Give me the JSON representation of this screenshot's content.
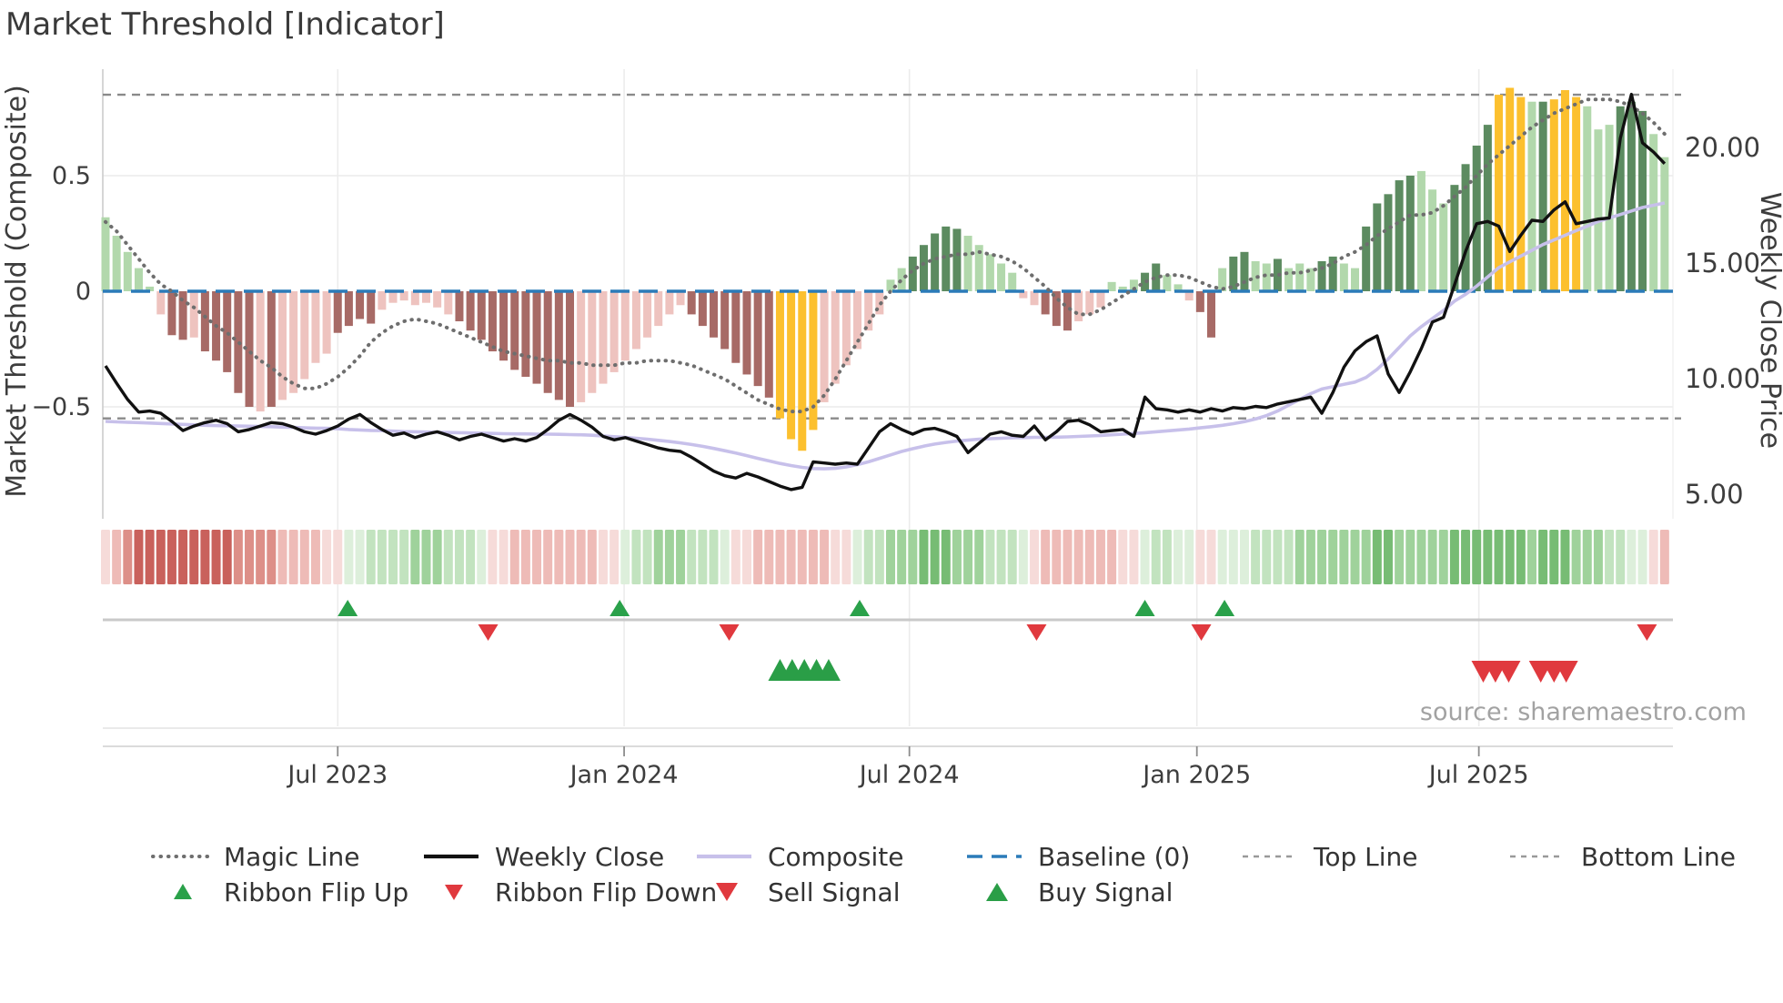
{
  "title": "Market Threshold [Indicator]",
  "source_note": "source: sharemaestro.com",
  "axes": {
    "left_label": "Market Threshold (Composite)",
    "right_label": "Weekly Close Price",
    "left_ticks": [
      {
        "value": 0.5,
        "label": "0.5"
      },
      {
        "value": 0,
        "label": "0"
      },
      {
        "value": -0.5,
        "label": "−0.5"
      }
    ],
    "right_ticks": [
      {
        "value": 20,
        "label": "20.00"
      },
      {
        "value": 15,
        "label": "15.00"
      },
      {
        "value": 10,
        "label": "10.00"
      },
      {
        "value": 5,
        "label": "5.00"
      }
    ],
    "x_ticks": [
      {
        "week": 21.0,
        "label": "Jul 2023"
      },
      {
        "week": 46.9,
        "label": "Jan 2024"
      },
      {
        "week": 72.7,
        "label": "Jul 2024"
      },
      {
        "week": 98.7,
        "label": "Jan 2025"
      },
      {
        "week": 124.2,
        "label": "Jul 2025"
      }
    ]
  },
  "colors": {
    "bar_dark_green": "#5c8b60",
    "bar_light_green": "#b2d8ac",
    "bar_dark_red": "#a76a66",
    "bar_light_pink": "#eec3bf",
    "bar_yellow": "#fcc02e",
    "weekly_close": "#111111",
    "composite_line": "#c7c0ea",
    "magic_line": "#6e6e6e",
    "baseline": "#2b7bb9",
    "threshold_line": "#8a8a8a",
    "grid": "#ececec",
    "spine": "#cccccc",
    "signal_axis": "#c9c9c9",
    "flip_up_green": "#2aa14a",
    "flip_down_red": "#e0393e",
    "buy_green": "#2a9e47",
    "sell_red": "#e0393e",
    "ribbon_red_shades": [
      "#f6dbd9",
      "#eebbb7",
      "#dd8f88",
      "#c9615c"
    ],
    "ribbon_green_shades": [
      "#ddefdb",
      "#c2e3bf",
      "#9fd29b",
      "#77bc74"
    ]
  },
  "legend": {
    "row1": [
      {
        "label": "Magic Line",
        "swatch": "dotted-gray"
      },
      {
        "label": "Weekly Close",
        "swatch": "solid-black"
      },
      {
        "label": "Composite",
        "swatch": "solid-lavender"
      },
      {
        "label": "Baseline (0)",
        "swatch": "dashed-blue"
      },
      {
        "label": "Top Line",
        "swatch": "dashed-gray"
      },
      {
        "label": "Bottom Line",
        "swatch": "dashed-gray"
      }
    ],
    "row2": [
      {
        "label": "Ribbon Flip Up",
        "marker": "triangle-up-green"
      },
      {
        "label": "Ribbon Flip Down",
        "marker": "triangle-down-red"
      },
      {
        "label": "Sell Signal",
        "marker": "triangle-down-red-large"
      },
      {
        "label": "Buy Signal",
        "marker": "triangle-up-green-large"
      }
    ]
  },
  "chart_data": {
    "type": "bar+line combo (weekly indicator panel)",
    "frequency": "weekly",
    "approx_start": "Feb 2023",
    "approx_end": "Oct 2025",
    "left_ylim": [
      -0.75,
      0.95
    ],
    "right_ylim": [
      4.0,
      23.5
    ],
    "top_line_value": 0.85,
    "bottom_line_value": -0.55,
    "baseline_value": 0,
    "grid": "light horizontal at 0.5 and -0.5, vertical at Jan/Jul",
    "composite_histogram": [
      0.32,
      0.24,
      0.17,
      0.1,
      0.02,
      -0.1,
      -0.19,
      -0.21,
      -0.2,
      -0.26,
      -0.3,
      -0.35,
      -0.44,
      -0.5,
      -0.52,
      -0.5,
      -0.47,
      -0.44,
      -0.38,
      -0.31,
      -0.27,
      -0.18,
      -0.15,
      -0.12,
      -0.14,
      -0.08,
      -0.05,
      -0.04,
      -0.06,
      -0.05,
      -0.07,
      -0.1,
      -0.13,
      -0.17,
      -0.21,
      -0.26,
      -0.3,
      -0.34,
      -0.37,
      -0.4,
      -0.44,
      -0.47,
      -0.5,
      -0.48,
      -0.44,
      -0.4,
      -0.35,
      -0.3,
      -0.25,
      -0.2,
      -0.15,
      -0.1,
      -0.06,
      -0.1,
      -0.15,
      -0.2,
      -0.25,
      -0.31,
      -0.36,
      -0.41,
      -0.46,
      -0.55,
      -0.64,
      -0.69,
      -0.6,
      -0.48,
      -0.4,
      -0.32,
      -0.25,
      -0.17,
      -0.1,
      0.05,
      0.1,
      0.15,
      0.2,
      0.25,
      0.28,
      0.27,
      0.24,
      0.2,
      0.16,
      0.12,
      0.08,
      -0.03,
      -0.06,
      -0.1,
      -0.15,
      -0.17,
      -0.13,
      -0.1,
      -0.07,
      0.04,
      0.02,
      0.05,
      0.08,
      0.12,
      0.07,
      0.03,
      -0.04,
      -0.09,
      -0.2,
      0.1,
      0.15,
      0.17,
      0.13,
      0.12,
      0.14,
      0.1,
      0.12,
      0.1,
      0.13,
      0.15,
      0.12,
      0.1,
      0.28,
      0.38,
      0.42,
      0.48,
      0.5,
      0.52,
      0.44,
      0.38,
      0.46,
      0.55,
      0.63,
      0.72,
      0.85,
      0.88,
      0.84,
      0.82,
      0.82,
      0.83,
      0.87,
      0.84,
      0.8,
      0.7,
      0.72,
      0.8,
      0.82,
      0.78,
      0.68,
      0.58
    ],
    "bar_colors": [
      "lg",
      "lg",
      "lg",
      "lg",
      "lg",
      "lp",
      "dr",
      "dr",
      "lp",
      "dr",
      "dr",
      "dr",
      "dr",
      "dr",
      "lp",
      "dr",
      "lp",
      "lp",
      "lp",
      "lp",
      "lp",
      "dr",
      "dr",
      "dr",
      "dr",
      "lp",
      "lp",
      "lp",
      "lp",
      "lp",
      "lp",
      "lp",
      "dr",
      "dr",
      "dr",
      "dr",
      "dr",
      "dr",
      "dr",
      "dr",
      "dr",
      "dr",
      "dr",
      "lp",
      "lp",
      "lp",
      "lp",
      "lp",
      "lp",
      "lp",
      "lp",
      "lp",
      "lp",
      "dr",
      "dr",
      "dr",
      "dr",
      "dr",
      "dr",
      "dr",
      "dr",
      "y",
      "y",
      "y",
      "y",
      "lp",
      "lp",
      "lp",
      "lp",
      "lp",
      "lp",
      "lg",
      "lg",
      "dg",
      "dg",
      "dg",
      "dg",
      "dg",
      "lg",
      "lg",
      "lg",
      "lg",
      "lg",
      "lp",
      "lp",
      "dr",
      "dr",
      "dr",
      "lp",
      "lp",
      "lp",
      "lg",
      "lg",
      "lg",
      "dg",
      "dg",
      "lg",
      "lg",
      "lp",
      "dr",
      "dr",
      "lg",
      "dg",
      "dg",
      "lg",
      "lg",
      "dg",
      "lg",
      "lg",
      "lg",
      "dg",
      "dg",
      "lg",
      "lg",
      "dg",
      "dg",
      "dg",
      "dg",
      "dg",
      "lg",
      "lg",
      "lg",
      "dg",
      "dg",
      "dg",
      "dg",
      "y",
      "y",
      "y",
      "lg",
      "dg",
      "y",
      "y",
      "y",
      "lg",
      "lg",
      "lg",
      "dg",
      "dg",
      "dg",
      "lg",
      "lg"
    ],
    "magic_line": [
      0.3,
      0.26,
      0.2,
      0.14,
      0.08,
      0.03,
      0.0,
      -0.04,
      -0.07,
      -0.11,
      -0.15,
      -0.18,
      -0.22,
      -0.26,
      -0.3,
      -0.33,
      -0.37,
      -0.4,
      -0.42,
      -0.42,
      -0.4,
      -0.37,
      -0.33,
      -0.28,
      -0.22,
      -0.18,
      -0.15,
      -0.13,
      -0.12,
      -0.13,
      -0.14,
      -0.16,
      -0.18,
      -0.2,
      -0.22,
      -0.24,
      -0.26,
      -0.27,
      -0.28,
      -0.29,
      -0.3,
      -0.3,
      -0.31,
      -0.31,
      -0.32,
      -0.32,
      -0.32,
      -0.31,
      -0.31,
      -0.3,
      -0.3,
      -0.3,
      -0.31,
      -0.32,
      -0.34,
      -0.36,
      -0.38,
      -0.41,
      -0.44,
      -0.47,
      -0.49,
      -0.51,
      -0.52,
      -0.52,
      -0.5,
      -0.45,
      -0.38,
      -0.3,
      -0.22,
      -0.14,
      -0.06,
      0.0,
      0.05,
      0.09,
      0.12,
      0.14,
      0.15,
      0.16,
      0.16,
      0.17,
      0.16,
      0.15,
      0.13,
      0.1,
      0.06,
      0.02,
      -0.03,
      -0.07,
      -0.1,
      -0.1,
      -0.08,
      -0.05,
      -0.02,
      0.01,
      0.04,
      0.06,
      0.07,
      0.07,
      0.06,
      0.04,
      0.02,
      0.01,
      0.02,
      0.04,
      0.06,
      0.07,
      0.07,
      0.08,
      0.08,
      0.09,
      0.1,
      0.12,
      0.15,
      0.17,
      0.2,
      0.24,
      0.27,
      0.3,
      0.33,
      0.33,
      0.34,
      0.37,
      0.41,
      0.45,
      0.5,
      0.55,
      0.59,
      0.63,
      0.67,
      0.71,
      0.74,
      0.77,
      0.79,
      0.81,
      0.83,
      0.83,
      0.83,
      0.82,
      0.8,
      0.77,
      0.73,
      0.68
    ],
    "weekly_close": [
      10.55,
      9.8,
      9.1,
      8.55,
      8.6,
      8.5,
      8.15,
      7.75,
      7.95,
      8.1,
      8.2,
      8.05,
      7.7,
      7.8,
      7.95,
      8.1,
      8.05,
      7.9,
      7.7,
      7.6,
      7.75,
      7.95,
      8.25,
      8.45,
      8.1,
      7.8,
      7.55,
      7.65,
      7.45,
      7.6,
      7.7,
      7.55,
      7.35,
      7.5,
      7.6,
      7.45,
      7.3,
      7.4,
      7.3,
      7.45,
      7.8,
      8.2,
      8.45,
      8.2,
      7.9,
      7.5,
      7.35,
      7.45,
      7.3,
      7.15,
      7.0,
      6.9,
      6.85,
      6.6,
      6.3,
      6.0,
      5.8,
      5.7,
      5.9,
      5.75,
      5.55,
      5.35,
      5.2,
      5.3,
      6.4,
      6.35,
      6.3,
      6.35,
      6.3,
      7.0,
      7.7,
      8.05,
      7.8,
      7.6,
      7.8,
      7.85,
      7.7,
      7.5,
      6.8,
      7.2,
      7.6,
      7.7,
      7.55,
      7.5,
      7.95,
      7.35,
      7.7,
      8.15,
      8.2,
      8.0,
      7.7,
      7.75,
      7.8,
      7.5,
      9.2,
      8.7,
      8.65,
      8.55,
      8.65,
      8.55,
      8.7,
      8.6,
      8.75,
      8.7,
      8.8,
      8.75,
      8.9,
      9.0,
      9.1,
      9.2,
      8.5,
      9.4,
      10.5,
      11.2,
      11.6,
      11.85,
      10.2,
      9.4,
      10.3,
      11.3,
      12.45,
      12.65,
      14.05,
      15.5,
      16.7,
      16.8,
      16.6,
      15.5,
      16.2,
      16.85,
      16.8,
      17.3,
      17.65,
      16.7,
      16.8,
      16.9,
      16.95,
      20.4,
      22.3,
      20.2,
      19.8,
      19.3
    ],
    "composite_price_line": [
      8.15,
      8.13,
      8.11,
      8.1,
      8.08,
      8.06,
      8.04,
      8.02,
      8.0,
      7.98,
      7.97,
      7.96,
      7.95,
      7.94,
      7.93,
      7.92,
      7.9,
      7.89,
      7.87,
      7.86,
      7.85,
      7.83,
      7.8,
      7.78,
      7.76,
      7.75,
      7.73,
      7.71,
      7.7,
      7.69,
      7.68,
      7.67,
      7.66,
      7.65,
      7.64,
      7.63,
      7.62,
      7.61,
      7.61,
      7.6,
      7.6,
      7.59,
      7.58,
      7.57,
      7.55,
      7.52,
      7.49,
      7.46,
      7.42,
      7.38,
      7.33,
      7.28,
      7.22,
      7.15,
      7.07,
      6.98,
      6.88,
      6.78,
      6.67,
      6.55,
      6.44,
      6.33,
      6.24,
      6.16,
      6.11,
      6.1,
      6.12,
      6.18,
      6.28,
      6.4,
      6.55,
      6.7,
      6.85,
      6.97,
      7.08,
      7.17,
      7.24,
      7.3,
      7.34,
      7.38,
      7.4,
      7.42,
      7.44,
      7.45,
      7.46,
      7.46,
      7.47,
      7.48,
      7.5,
      7.52,
      7.54,
      7.57,
      7.6,
      7.63,
      7.66,
      7.7,
      7.74,
      7.78,
      7.82,
      7.87,
      7.92,
      7.98,
      8.05,
      8.14,
      8.25,
      8.4,
      8.6,
      8.85,
      9.1,
      9.35,
      9.55,
      9.65,
      9.75,
      9.85,
      10.05,
      10.4,
      10.85,
      11.35,
      11.85,
      12.25,
      12.6,
      12.95,
      13.35,
      13.65,
      14.0,
      14.4,
      14.8,
      15.05,
      15.3,
      15.55,
      15.8,
      16.0,
      16.2,
      16.4,
      16.6,
      16.8,
      16.95,
      17.1,
      17.25,
      17.4,
      17.5,
      17.6
    ],
    "ribbon": [
      -1,
      -2,
      -3,
      -4,
      -4,
      -4,
      -4,
      -4,
      -4,
      -4,
      -4,
      -4,
      -3,
      -3,
      -3,
      -3,
      -2,
      -2,
      -2,
      -2,
      -1,
      -1,
      1,
      1,
      2,
      2,
      2,
      2,
      3,
      3,
      3,
      2,
      2,
      2,
      1,
      -1,
      -1,
      -2,
      -2,
      -2,
      -2,
      -2,
      -2,
      -2,
      -2,
      -1,
      -1,
      1,
      2,
      2,
      3,
      3,
      3,
      2,
      2,
      2,
      1,
      -1,
      -1,
      -2,
      -2,
      -2,
      -2,
      -2,
      -2,
      -2,
      -1,
      -1,
      1,
      2,
      2,
      3,
      3,
      3,
      4,
      4,
      4,
      3,
      3,
      3,
      2,
      2,
      2,
      1,
      -1,
      -2,
      -2,
      -2,
      -2,
      -2,
      -2,
      -2,
      -1,
      -1,
      1,
      2,
      2,
      1,
      1,
      -1,
      -1,
      1,
      1,
      1,
      2,
      2,
      2,
      2,
      3,
      3,
      3,
      3,
      3,
      3,
      3,
      4,
      4,
      3,
      3,
      3,
      3,
      3,
      4,
      4,
      4,
      4,
      4,
      4,
      4,
      3,
      4,
      4,
      4,
      3,
      3,
      3,
      2,
      2,
      1,
      1,
      -1,
      -2
    ],
    "markers": {
      "ribbon_flip_up_weeks": [
        21.9,
        46.5,
        68.2,
        94.0,
        101.2
      ],
      "ribbon_flip_down_weeks": [
        34.6,
        56.4,
        84.2,
        99.1,
        139.4
      ],
      "buy_signal_weeks": [
        61.0,
        62.1,
        63.2,
        64.3,
        65.4
      ],
      "sell_signal_weeks": [
        124.6,
        125.7,
        126.9,
        129.8,
        131.0,
        132.1
      ]
    }
  }
}
